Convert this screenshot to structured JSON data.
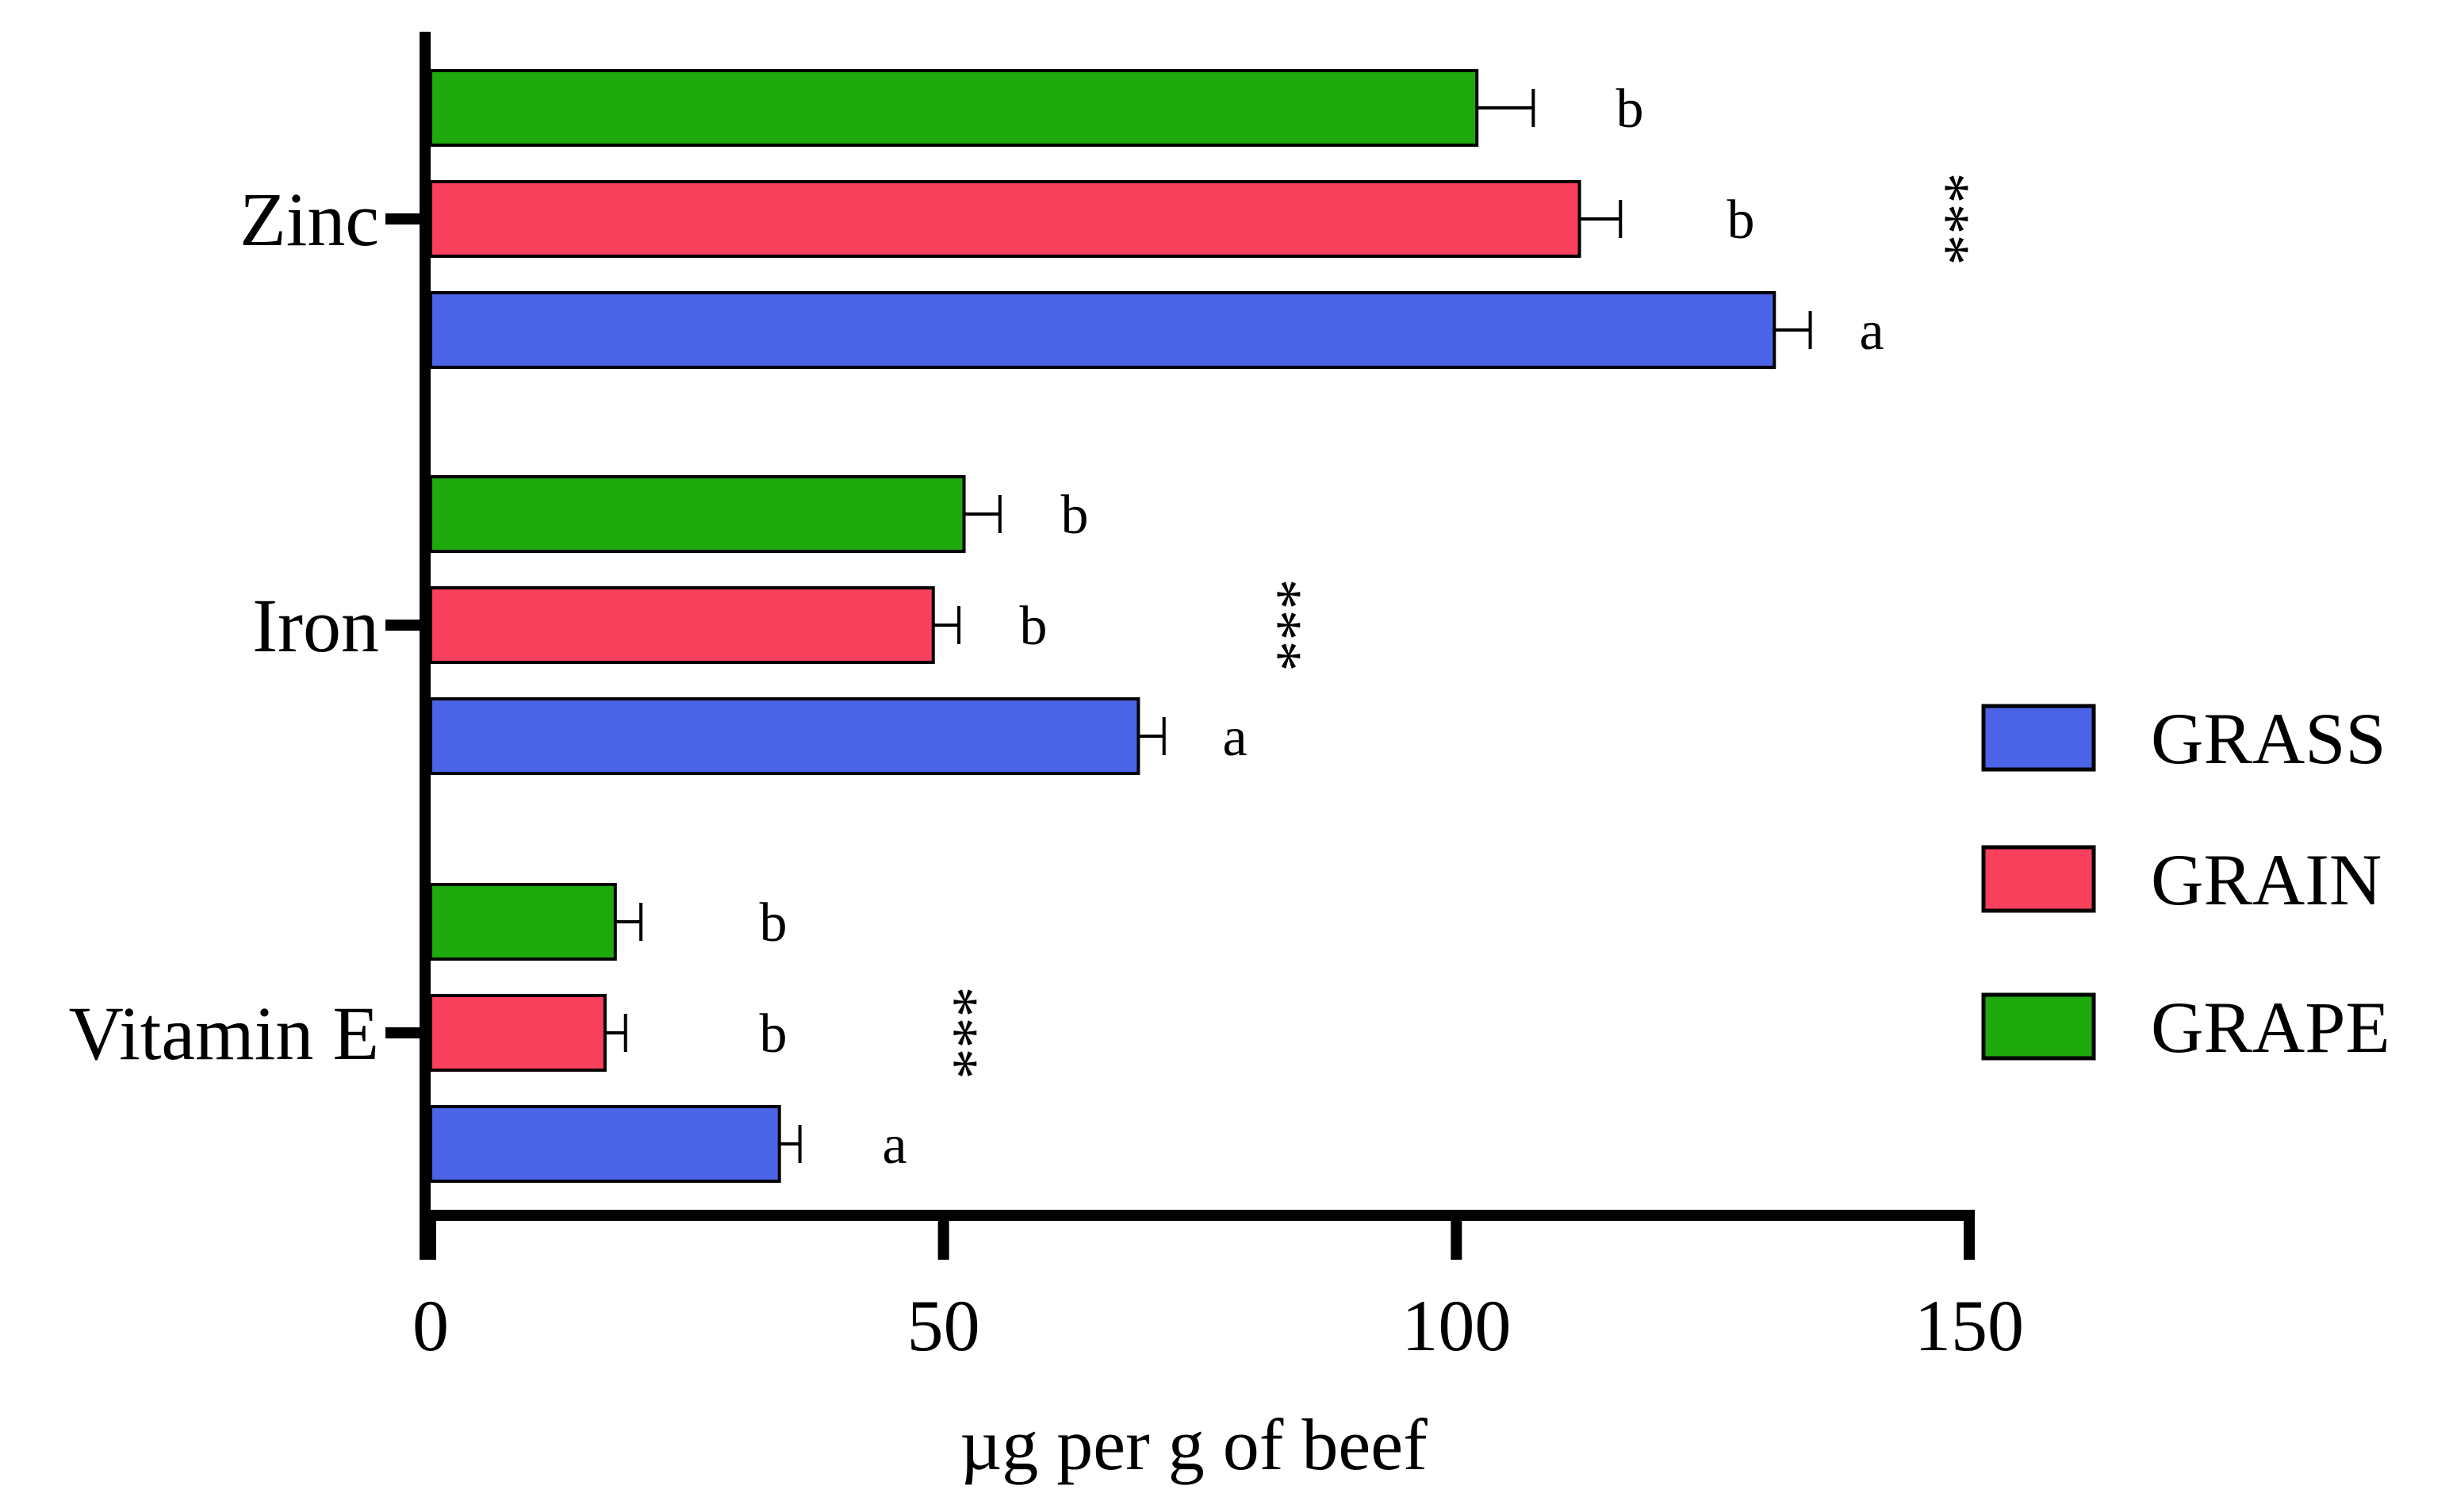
{
  "chart_data": {
    "type": "bar",
    "orientation": "horizontal",
    "title": "",
    "xlabel": "µg per g of beef",
    "ylabel": "",
    "xlim": [
      0,
      150
    ],
    "xticks": [
      "0",
      "50",
      "100",
      "150"
    ],
    "tick_values": [
      0,
      50,
      100,
      150
    ],
    "categories": [
      "Zinc",
      "Iron",
      "Vitamin E"
    ],
    "series": [
      {
        "name": "GRASS",
        "color": "#4b63e6",
        "values": [
          131,
          69,
          34
        ],
        "errors": [
          3.5,
          2.5,
          2
        ]
      },
      {
        "name": "GRAIN",
        "color": "#f9405c",
        "values": [
          112,
          49,
          17
        ],
        "errors": [
          4,
          2.5,
          2
        ]
      },
      {
        "name": "GRAPE",
        "color": "#1eaa0c",
        "values": [
          102,
          52,
          18
        ],
        "errors": [
          5.5,
          3.5,
          2.5
        ]
      }
    ],
    "letters": {
      "GRASS": [
        "a",
        "a",
        "a"
      ],
      "GRAIN": [
        "b",
        "b",
        "b"
      ],
      "GRAPE": [
        "b",
        "b",
        "b"
      ]
    },
    "significance": [
      "***",
      "***",
      "***"
    ],
    "legend_position": "right"
  }
}
